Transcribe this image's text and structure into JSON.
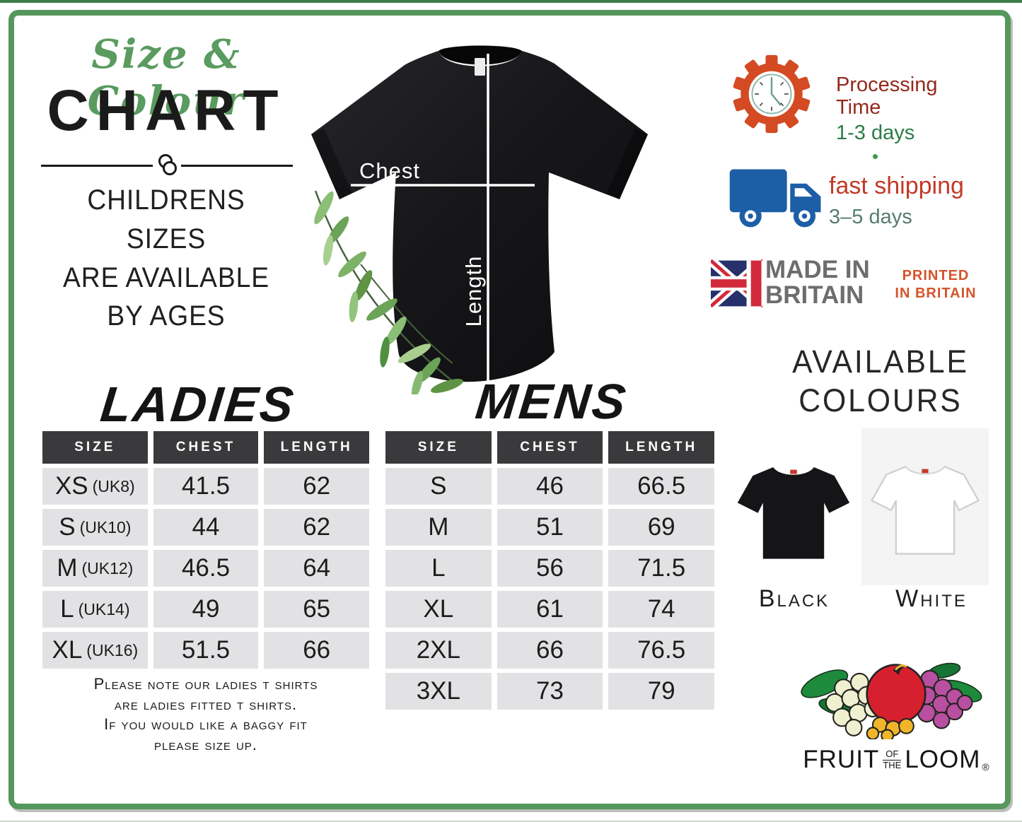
{
  "header": {
    "script_title": "Size & Colour",
    "main_title": "CHART",
    "childrens_lines": [
      "CHILDRENS",
      "SIZES",
      "ARE AVAILABLE",
      "BY AGES"
    ]
  },
  "diagram": {
    "chest_label": "Chest",
    "length_label": "Length"
  },
  "info": {
    "processing": {
      "line1": "Processing",
      "line2": "Time",
      "days": "1-3 days"
    },
    "shipping": {
      "title": "fast shipping",
      "days": "3–5 days"
    },
    "made_in": {
      "line1": "MADE IN",
      "line2": "BRITAIN"
    },
    "printed_in": {
      "line1": "PRINTED",
      "line2": "IN BRITAIN"
    }
  },
  "colours": {
    "heading_lines": [
      "AVAILABLE",
      "COLOURS"
    ],
    "options": [
      {
        "label": "Black"
      },
      {
        "label": "White"
      }
    ]
  },
  "brand": {
    "word1": "FRUIT",
    "of": "OF",
    "the": "THE",
    "word2": "LOOM",
    "reg": "®"
  },
  "ladies": {
    "note_lines": [
      "Please note our ladies t shirts",
      "are ladies fitted t shirts.",
      "If you would like a baggy fit",
      "please size up."
    ]
  },
  "chart_data": [
    {
      "type": "table",
      "title": "LADIES",
      "columns": [
        "SIZE",
        "CHEST",
        "LENGTH"
      ],
      "rows": [
        [
          "XS (UK8)",
          "41.5",
          "62"
        ],
        [
          "S (UK10)",
          "44",
          "62"
        ],
        [
          "M (UK12)",
          "46.5",
          "64"
        ],
        [
          "L (UK14)",
          "49",
          "65"
        ],
        [
          "XL (UK16)",
          "51.5",
          "66"
        ]
      ]
    },
    {
      "type": "table",
      "title": "MENS",
      "columns": [
        "SIZE",
        "CHEST",
        "LENGTH"
      ],
      "rows": [
        [
          "S",
          "46",
          "66.5"
        ],
        [
          "M",
          "51",
          "69"
        ],
        [
          "L",
          "56",
          "71.5"
        ],
        [
          "XL",
          "61",
          "74"
        ],
        [
          "2XL",
          "66",
          "76.5"
        ],
        [
          "3XL",
          "73",
          "79"
        ]
      ]
    }
  ],
  "colors": {
    "frame_green": "#55975c",
    "title_green": "#5a9b5f",
    "processing_red": "#93291c",
    "shipping_red": "#c23a28",
    "days_green": "#2c7c49",
    "days_teal": "#567c71",
    "gear_orange": "#d44a22",
    "truck_blue": "#1d5fa6",
    "printed_orange": "#d4552b",
    "made_gray": "#6d6d6d",
    "flag_blue": "#26316b",
    "flag_red": "#d2293a",
    "table_header_bg": "#3a3a3c",
    "table_cell_bg": "#e2e2e4"
  }
}
